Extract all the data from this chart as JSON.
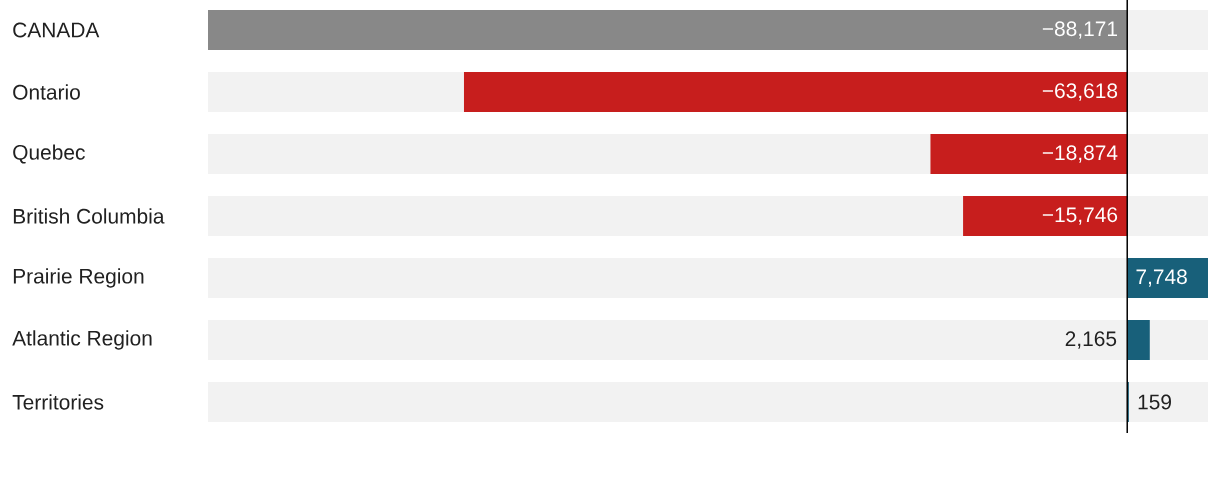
{
  "chart_data": {
    "type": "bar",
    "orientation": "horizontal",
    "categories": [
      "CANADA",
      "Ontario",
      "Quebec",
      "British Columbia",
      "Prairie Region",
      "Atlantic Region",
      "Territories"
    ],
    "values": [
      -88171,
      -63618,
      -18874,
      -15746,
      7748,
      2165,
      159
    ],
    "colors": [
      "#888888",
      "#c71e1d",
      "#c71e1d",
      "#c71e1d",
      "#18607a",
      "#18607a",
      "#18607a"
    ],
    "value_labels": [
      "−88,171",
      "−63,618",
      "−18,874",
      "−15,746",
      "7,748",
      "2,165",
      "159"
    ],
    "xlim": [
      -88171,
      7748
    ],
    "tick_labels": "y"
  }
}
